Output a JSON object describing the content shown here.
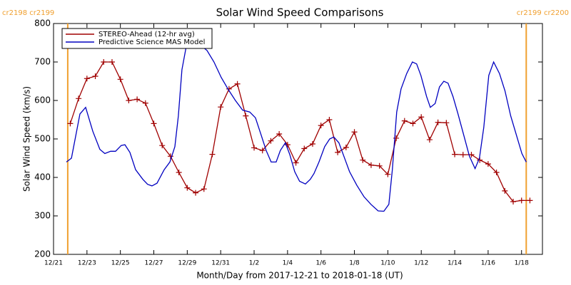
{
  "chart_data": {
    "type": "line",
    "title": "Solar Wind Speed Comparisons",
    "x_label": "Month/Day from 2017-12-21 to 2018-01-18 (UT)",
    "y_label": "Solar Wind Speed (km/s)",
    "xlim": [
      0,
      29.25
    ],
    "ylim": [
      200,
      800
    ],
    "xticks": [
      {
        "value": 0,
        "label": "12/21"
      },
      {
        "value": 2,
        "label": "12/23"
      },
      {
        "value": 4,
        "label": "12/25"
      },
      {
        "value": 6,
        "label": "12/27"
      },
      {
        "value": 8,
        "label": "12/29"
      },
      {
        "value": 10,
        "label": "12/31"
      },
      {
        "value": 12,
        "label": "1/2"
      },
      {
        "value": 14,
        "label": "1/4"
      },
      {
        "value": 16,
        "label": "1/6"
      },
      {
        "value": 18,
        "label": "1/8"
      },
      {
        "value": 20,
        "label": "1/10"
      },
      {
        "value": 22,
        "label": "1/12"
      },
      {
        "value": 24,
        "label": "1/14"
      },
      {
        "value": 26,
        "label": "1/16"
      },
      {
        "value": 28,
        "label": "1/18"
      }
    ],
    "yticks": [
      200,
      300,
      400,
      500,
      600,
      700,
      800
    ],
    "legend": "upper left",
    "annotations": [
      {
        "x": 0.85,
        "label": "cr2198 cr2199",
        "color": "#f0a030"
      },
      {
        "x": 28.28,
        "label": "cr2199 cr2200",
        "color": "#f0a030"
      }
    ],
    "series": [
      {
        "name": "STEREO-Ahead (12-hr avg)",
        "color": "#a00000",
        "markers": true,
        "x": [
          1,
          1.5,
          2,
          2.5,
          3,
          3.5,
          4,
          4.5,
          5,
          5.5,
          6,
          6.5,
          7,
          7.5,
          8,
          8.5,
          9,
          9.5,
          10,
          10.5,
          11,
          11.5,
          12,
          12.5,
          13,
          13.5,
          14,
          14.5,
          15,
          15.5,
          16,
          16.5,
          17,
          17.5,
          18,
          18.5,
          19,
          19.5,
          20,
          20.5,
          21,
          21.5,
          22,
          22.5,
          23,
          23.5,
          24,
          24.5,
          25,
          25.5,
          26,
          26.5,
          27,
          27.5,
          28,
          28.5
        ],
        "values": [
          540,
          605,
          657,
          663,
          700,
          700,
          655,
          600,
          603,
          593,
          540,
          483,
          455,
          413,
          373,
          360,
          370,
          460,
          583,
          630,
          643,
          560,
          477,
          470,
          495,
          513,
          485,
          438,
          475,
          487,
          535,
          550,
          465,
          478,
          518,
          445,
          432,
          430,
          408,
          502,
          547,
          540,
          557,
          498,
          543,
          542,
          460,
          459,
          459,
          445,
          435,
          413,
          365,
          337,
          340,
          340
        ]
      },
      {
        "name": "Predictive Science MAS Model",
        "color": "#0000c0",
        "markers": false,
        "x": [
          0.77,
          1.07,
          1.58,
          1.92,
          2.35,
          2.77,
          3.07,
          3.41,
          3.71,
          4.05,
          4.27,
          4.57,
          4.91,
          5.34,
          5.63,
          5.89,
          6.19,
          6.62,
          6.96,
          7.26,
          7.47,
          7.68,
          7.98,
          8.32,
          8.75,
          9.18,
          9.6,
          10.03,
          10.46,
          10.88,
          11.31,
          11.74,
          12.08,
          12.42,
          12.72,
          13.02,
          13.32,
          13.57,
          13.87,
          14.13,
          14.43,
          14.72,
          15.07,
          15.36,
          15.58,
          15.88,
          16.22,
          16.52,
          16.77,
          17.07,
          17.37,
          17.71,
          18.14,
          18.57,
          18.99,
          19.42,
          19.76,
          20.06,
          20.27,
          20.53,
          20.79,
          21.13,
          21.47,
          21.72,
          21.98,
          22.32,
          22.54,
          22.83,
          23.09,
          23.35,
          23.6,
          23.9,
          24.2,
          24.54,
          24.88,
          25.22,
          25.48,
          25.74,
          26.04,
          26.33,
          26.68,
          27.01,
          27.35,
          27.69,
          28.02,
          28.28
        ],
        "values": [
          440,
          450,
          565,
          582,
          520,
          473,
          462,
          468,
          468,
          483,
          485,
          465,
          420,
          395,
          382,
          378,
          385,
          420,
          440,
          480,
          560,
          680,
          750,
          755,
          745,
          730,
          700,
          660,
          628,
          600,
          575,
          570,
          555,
          510,
          470,
          440,
          440,
          470,
          490,
          460,
          415,
          390,
          383,
          395,
          410,
          440,
          480,
          500,
          505,
          490,
          455,
          415,
          380,
          350,
          330,
          313,
          312,
          330,
          420,
          570,
          630,
          670,
          700,
          695,
          665,
          610,
          582,
          592,
          635,
          650,
          645,
          610,
          565,
          510,
          455,
          423,
          450,
          530,
          665,
          700,
          670,
          625,
          560,
          510,
          462,
          440
        ]
      }
    ]
  }
}
